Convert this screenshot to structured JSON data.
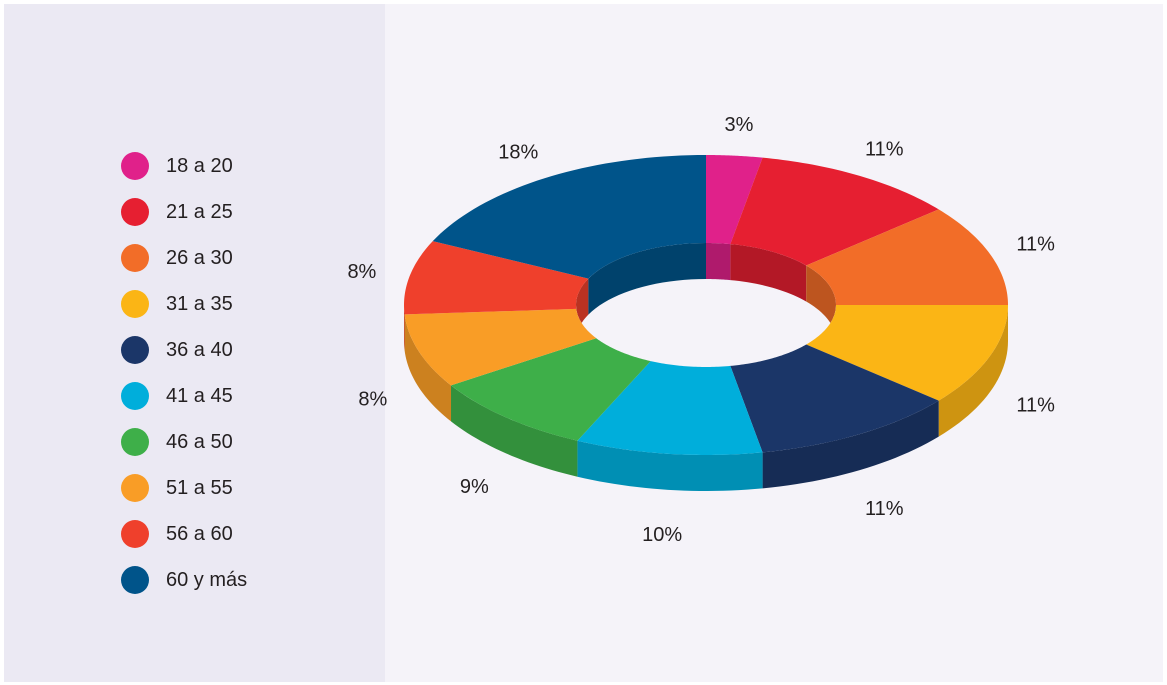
{
  "chart_data": {
    "type": "pie",
    "variant": "3d-donut",
    "legend_position": "left",
    "categories": [
      "18 a 20",
      "21 a 25",
      "26 a 30",
      "31 a 35",
      "36 a 40",
      "41 a 45",
      "46 a 50",
      "51 a 55",
      "56 a 60",
      "60 y más"
    ],
    "values": [
      3,
      11,
      11,
      11,
      11,
      10,
      9,
      8,
      8,
      18
    ],
    "labels": [
      "3%",
      "11%",
      "11%",
      "11%",
      "11%",
      "10%",
      "9%",
      "8%",
      "8%",
      "18%"
    ],
    "colors": [
      "#e0218a",
      "#e61f31",
      "#f26d28",
      "#fbb515",
      "#1b3668",
      "#00aedb",
      "#3eaf49",
      "#f99d26",
      "#ef402c",
      "#00548a"
    ]
  }
}
